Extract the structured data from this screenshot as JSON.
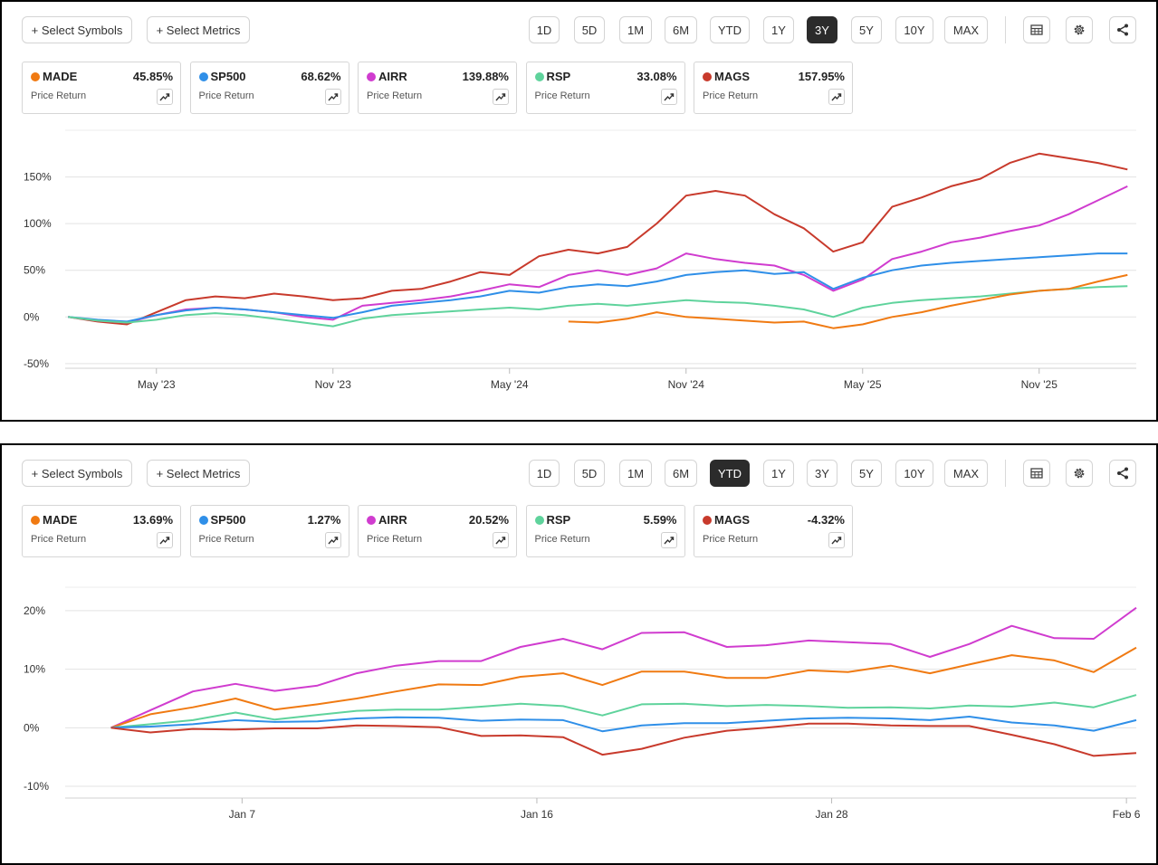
{
  "toolbar": {
    "select_symbols": "+ Select Symbols",
    "select_metrics": "+ Select Metrics",
    "ranges": [
      "1D",
      "5D",
      "1M",
      "6M",
      "YTD",
      "1Y",
      "3Y",
      "5Y",
      "10Y",
      "MAX"
    ],
    "icons": [
      "table-icon",
      "gear-icon",
      "share-icon"
    ]
  },
  "panels": [
    {
      "active_range": "3Y",
      "cards": [
        {
          "symbol": "MADE",
          "value": "45.85%",
          "metric": "Price Return",
          "color": "#f07a12"
        },
        {
          "symbol": "SP500",
          "value": "68.62%",
          "metric": "Price Return",
          "color": "#2f8fe8"
        },
        {
          "symbol": "AIRR",
          "value": "139.88%",
          "metric": "Price Return",
          "color": "#d03ccf"
        },
        {
          "symbol": "RSP",
          "value": "33.08%",
          "metric": "Price Return",
          "color": "#5fd39c"
        },
        {
          "symbol": "MAGS",
          "value": "157.95%",
          "metric": "Price Return",
          "color": "#c83a2c"
        }
      ]
    },
    {
      "active_range": "YTD",
      "cards": [
        {
          "symbol": "MADE",
          "value": "13.69%",
          "metric": "Price Return",
          "color": "#f07a12"
        },
        {
          "symbol": "SP500",
          "value": "1.27%",
          "metric": "Price Return",
          "color": "#2f8fe8"
        },
        {
          "symbol": "AIRR",
          "value": "20.52%",
          "metric": "Price Return",
          "color": "#d03ccf"
        },
        {
          "symbol": "RSP",
          "value": "5.59%",
          "metric": "Price Return",
          "color": "#5fd39c"
        },
        {
          "symbol": "MAGS",
          "value": "-4.32%",
          "metric": "Price Return",
          "color": "#c83a2c"
        }
      ]
    }
  ],
  "chart_data": [
    {
      "type": "line",
      "x_tick_labels": [
        "May '23",
        "Nov '23",
        "May '24",
        "Nov '24",
        "May '25",
        "Nov '25"
      ],
      "x_tick_positions": [
        0.5,
        6.5,
        12.5,
        18.5,
        24.5,
        30.5
      ],
      "x_range": [
        -2.6,
        33.8
      ],
      "y_tick_labels": [
        "150%",
        "100%",
        "50%",
        "0%",
        "-50%"
      ],
      "y_ticks": [
        150,
        100,
        50,
        0,
        -50
      ],
      "ylim": [
        -55,
        200
      ],
      "grid": "horizontal",
      "series": [
        {
          "name": "MAGS",
          "color": "#c83a2c",
          "x": [
            -2.5,
            -1.5,
            -0.5,
            0.5,
            1.5,
            2.5,
            3.5,
            4.5,
            5.5,
            6.5,
            7.5,
            8.5,
            9.5,
            10.5,
            11.5,
            12.5,
            13.5,
            14.5,
            15.5,
            16.5,
            17.5,
            18.5,
            19.5,
            20.5,
            21.5,
            22.5,
            23.5,
            24.5,
            25.5,
            26.5,
            27.5,
            28.5,
            29.5,
            30.5,
            31.5,
            32.5,
            33.5
          ],
          "y": [
            0,
            -5,
            -8,
            5,
            18,
            22,
            20,
            25,
            22,
            18,
            20,
            28,
            30,
            38,
            48,
            45,
            65,
            72,
            68,
            75,
            100,
            130,
            135,
            130,
            110,
            95,
            70,
            80,
            118,
            128,
            140,
            148,
            165,
            175,
            170,
            165,
            158
          ]
        },
        {
          "name": "AIRR",
          "color": "#d03ccf",
          "x": [
            -2.5,
            -1.5,
            -0.5,
            0.5,
            1.5,
            2.5,
            3.5,
            4.5,
            5.5,
            6.5,
            7.5,
            8.5,
            9.5,
            10.5,
            11.5,
            12.5,
            13.5,
            14.5,
            15.5,
            16.5,
            17.5,
            18.5,
            19.5,
            20.5,
            21.5,
            22.5,
            23.5,
            24.5,
            25.5,
            26.5,
            27.5,
            28.5,
            29.5,
            30.5,
            31.5,
            32.5,
            33.5
          ],
          "y": [
            0,
            -4,
            -6,
            2,
            8,
            10,
            8,
            5,
            0,
            -3,
            12,
            15,
            18,
            22,
            28,
            35,
            32,
            45,
            50,
            45,
            52,
            68,
            62,
            58,
            55,
            45,
            28,
            40,
            62,
            70,
            80,
            85,
            92,
            98,
            110,
            125,
            140
          ]
        },
        {
          "name": "SP500",
          "color": "#2f8fe8",
          "x": [
            -2.5,
            -1.5,
            -0.5,
            0.5,
            1.5,
            2.5,
            3.5,
            4.5,
            5.5,
            6.5,
            7.5,
            8.5,
            9.5,
            10.5,
            11.5,
            12.5,
            13.5,
            14.5,
            15.5,
            16.5,
            17.5,
            18.5,
            19.5,
            20.5,
            21.5,
            22.5,
            23.5,
            24.5,
            25.5,
            26.5,
            27.5,
            28.5,
            29.5,
            30.5,
            31.5,
            32.5,
            33.5
          ],
          "y": [
            0,
            -3,
            -5,
            2,
            7,
            10,
            8,
            5,
            2,
            -1,
            5,
            12,
            15,
            18,
            22,
            28,
            26,
            32,
            35,
            33,
            38,
            45,
            48,
            50,
            46,
            48,
            30,
            42,
            50,
            55,
            58,
            60,
            62,
            64,
            66,
            68,
            68
          ]
        },
        {
          "name": "RSP",
          "color": "#5fd39c",
          "x": [
            -2.5,
            -1.5,
            -0.5,
            0.5,
            1.5,
            2.5,
            3.5,
            4.5,
            5.5,
            6.5,
            7.5,
            8.5,
            9.5,
            10.5,
            11.5,
            12.5,
            13.5,
            14.5,
            15.5,
            16.5,
            17.5,
            18.5,
            19.5,
            20.5,
            21.5,
            22.5,
            23.5,
            24.5,
            25.5,
            26.5,
            27.5,
            28.5,
            29.5,
            30.5,
            31.5,
            32.5,
            33.5
          ],
          "y": [
            0,
            -4,
            -6,
            -3,
            2,
            4,
            2,
            -2,
            -6,
            -10,
            -2,
            2,
            4,
            6,
            8,
            10,
            8,
            12,
            14,
            12,
            15,
            18,
            16,
            15,
            12,
            8,
            0,
            10,
            15,
            18,
            20,
            22,
            25,
            28,
            30,
            32,
            33
          ]
        },
        {
          "name": "MADE",
          "color": "#f07a12",
          "x": [
            14.5,
            15.5,
            16.5,
            17.5,
            18.5,
            19.5,
            20.5,
            21.5,
            22.5,
            23.5,
            24.5,
            25.5,
            26.5,
            27.5,
            28.5,
            29.5,
            30.5,
            31.5,
            32.5,
            33.5
          ],
          "y": [
            -5,
            -6,
            -2,
            5,
            0,
            -2,
            -4,
            -6,
            -5,
            -12,
            -8,
            0,
            5,
            12,
            18,
            24,
            28,
            30,
            38,
            45
          ]
        }
      ]
    },
    {
      "type": "line",
      "x_tick_labels": [
        "Jan 7",
        "Jan 16",
        "Jan 28",
        "Feb 6"
      ],
      "x_tick_positions": [
        4,
        13,
        22,
        31
      ],
      "x_range": [
        -1.4,
        31.3
      ],
      "y_tick_labels": [
        "20%",
        "10%",
        "0%",
        "-10%"
      ],
      "y_ticks": [
        20,
        10,
        0,
        -10
      ],
      "ylim": [
        -12,
        24
      ],
      "grid": "horizontal",
      "series": [
        {
          "name": "AIRR",
          "color": "#d03ccf",
          "x": [
            0,
            1.2,
            2.5,
            3.8,
            5,
            6.3,
            7.5,
            8.7,
            10,
            11.3,
            12.5,
            13.8,
            15,
            16.2,
            17.5,
            18.8,
            20,
            21.3,
            22.5,
            23.8,
            25,
            26.2,
            27.5,
            28.8,
            30,
            31.3
          ],
          "y": [
            0,
            3,
            6.2,
            7.5,
            6.3,
            7.2,
            9.3,
            10.6,
            11.4,
            11.4,
            13.8,
            15.2,
            13.4,
            16.2,
            16.3,
            13.8,
            14.1,
            14.9,
            14.6,
            14.3,
            12.1,
            14.3,
            17.4,
            15.3,
            15.2,
            20.5
          ]
        },
        {
          "name": "MADE",
          "color": "#f07a12",
          "x": [
            0,
            1.2,
            2.5,
            3.8,
            5,
            6.3,
            7.5,
            8.7,
            10,
            11.3,
            12.5,
            13.8,
            15,
            16.2,
            17.5,
            18.8,
            20,
            21.3,
            22.5,
            23.8,
            25,
            26.2,
            27.5,
            28.8,
            30,
            31.3
          ],
          "y": [
            0,
            2.3,
            3.5,
            5,
            3.1,
            4,
            5,
            6.2,
            7.4,
            7.3,
            8.7,
            9.3,
            7.3,
            9.6,
            9.6,
            8.5,
            8.5,
            9.8,
            9.5,
            10.6,
            9.3,
            10.8,
            12.4,
            11.5,
            9.5,
            13.7
          ]
        },
        {
          "name": "RSP",
          "color": "#5fd39c",
          "x": [
            0,
            1.2,
            2.5,
            3.8,
            5,
            6.3,
            7.5,
            8.7,
            10,
            11.3,
            12.5,
            13.8,
            15,
            16.2,
            17.5,
            18.8,
            20,
            21.3,
            22.5,
            23.8,
            25,
            26.2,
            27.5,
            28.8,
            30,
            31.3
          ],
          "y": [
            0,
            0.6,
            1.3,
            2.6,
            1.4,
            2.2,
            2.9,
            3.1,
            3.1,
            3.6,
            4.1,
            3.7,
            2.1,
            4,
            4.1,
            3.7,
            3.9,
            3.7,
            3.4,
            3.5,
            3.3,
            3.8,
            3.6,
            4.3,
            3.5,
            5.6
          ]
        },
        {
          "name": "SP500",
          "color": "#2f8fe8",
          "x": [
            0,
            1.2,
            2.5,
            3.8,
            5,
            6.3,
            7.5,
            8.7,
            10,
            11.3,
            12.5,
            13.8,
            15,
            16.2,
            17.5,
            18.8,
            20,
            21.3,
            22.5,
            23.8,
            25,
            26.2,
            27.5,
            28.8,
            30,
            31.3
          ],
          "y": [
            0,
            0.2,
            0.6,
            1.3,
            1,
            1.1,
            1.6,
            1.8,
            1.7,
            1.2,
            1.4,
            1.3,
            -0.6,
            0.4,
            0.8,
            0.8,
            1.2,
            1.6,
            1.7,
            1.6,
            1.3,
            1.9,
            0.9,
            0.4,
            -0.5,
            1.3
          ]
        },
        {
          "name": "MAGS",
          "color": "#c83a2c",
          "x": [
            0,
            1.2,
            2.5,
            3.8,
            5,
            6.3,
            7.5,
            8.7,
            10,
            11.3,
            12.5,
            13.8,
            15,
            16.2,
            17.5,
            18.8,
            20,
            21.3,
            22.5,
            23.8,
            25,
            26.2,
            27.5,
            28.8,
            30,
            31.3
          ],
          "y": [
            0,
            -0.8,
            -0.2,
            -0.3,
            -0.1,
            -0.1,
            0.4,
            0.3,
            0.1,
            -1.4,
            -1.3,
            -1.6,
            -4.6,
            -3.6,
            -1.7,
            -0.5,
            0,
            0.7,
            0.7,
            0.4,
            0.3,
            0.3,
            -1.2,
            -2.8,
            -4.8,
            -4.3
          ]
        }
      ]
    }
  ]
}
